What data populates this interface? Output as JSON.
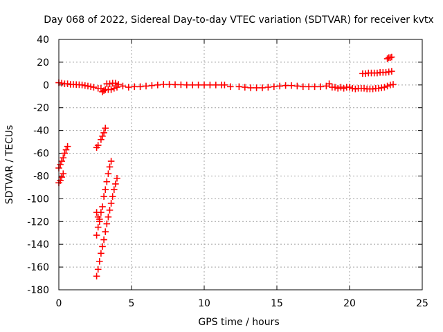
{
  "chart_data": {
    "type": "scatter",
    "title": "Day 068 of 2022, Sidereal Day-to-day VTEC variation (SDTVAR) for receiver kvtx",
    "xlabel": "GPS time / hours",
    "ylabel": "SDTVAR / TECUs",
    "xlim": [
      0,
      25
    ],
    "ylim": [
      -180,
      40
    ],
    "xticks": [
      0,
      5,
      10,
      15,
      20,
      25
    ],
    "yticks": [
      -180,
      -160,
      -140,
      -120,
      -100,
      -80,
      -60,
      -40,
      -20,
      0,
      20,
      40
    ],
    "grid": true,
    "legend": false,
    "marker": "plus",
    "colors": {
      "series": "#ff0000"
    },
    "series": [
      {
        "points": [
          [
            0.0,
            2
          ],
          [
            0.2,
            1.5
          ],
          [
            0.4,
            1
          ],
          [
            0.6,
            1
          ],
          [
            0.8,
            0.5
          ],
          [
            1.0,
            0.5
          ],
          [
            1.2,
            0.3
          ],
          [
            1.4,
            0.2
          ],
          [
            1.6,
            0
          ],
          [
            1.8,
            -0.5
          ],
          [
            2.0,
            -1
          ],
          [
            2.2,
            -1.5
          ],
          [
            2.4,
            -2
          ],
          [
            2.9,
            -3
          ],
          [
            3.0,
            -6
          ],
          [
            3.1,
            -5
          ],
          [
            3.2,
            -4
          ],
          [
            3.4,
            -4
          ],
          [
            3.6,
            -4
          ],
          [
            3.8,
            -3
          ],
          [
            4.0,
            -2
          ],
          [
            3.3,
            1
          ],
          [
            3.5,
            1
          ],
          [
            3.7,
            1.5
          ],
          [
            3.9,
            1.5
          ],
          [
            4.1,
            0.5
          ],
          [
            4.4,
            -1
          ],
          [
            2.7,
            -3
          ],
          [
            4.8,
            -2
          ],
          [
            5.2,
            -1.5
          ],
          [
            5.6,
            -1.5
          ],
          [
            6.0,
            -1
          ],
          [
            6.4,
            -0.5
          ],
          [
            6.8,
            0
          ],
          [
            7.2,
            0.5
          ],
          [
            7.6,
            0.5
          ],
          [
            8.0,
            0.3
          ],
          [
            8.4,
            0.2
          ],
          [
            8.8,
            0
          ],
          [
            9.2,
            0
          ],
          [
            9.6,
            0
          ],
          [
            10.0,
            0
          ],
          [
            10.4,
            0
          ],
          [
            10.8,
            0
          ],
          [
            11.2,
            0
          ],
          [
            11.4,
            0
          ],
          [
            11.8,
            -1.5
          ],
          [
            12.4,
            -1.5
          ],
          [
            12.8,
            -2
          ],
          [
            13.2,
            -2.5
          ],
          [
            13.6,
            -2.5
          ],
          [
            14.0,
            -2.5
          ],
          [
            14.4,
            -2
          ],
          [
            14.8,
            -1.5
          ],
          [
            15.2,
            -1
          ],
          [
            15.6,
            -0.5
          ],
          [
            16.0,
            -0.5
          ],
          [
            16.4,
            -1
          ],
          [
            16.8,
            -1.5
          ],
          [
            17.2,
            -1.5
          ],
          [
            17.6,
            -1.5
          ],
          [
            18.0,
            -1.5
          ],
          [
            18.4,
            -1
          ],
          [
            18.6,
            1
          ],
          [
            18.8,
            -2
          ],
          [
            19.0,
            -2
          ],
          [
            19.2,
            -3
          ],
          [
            19.4,
            -2
          ],
          [
            19.6,
            -3
          ],
          [
            19.8,
            -2
          ],
          [
            20.0,
            -2
          ],
          [
            20.2,
            -3
          ],
          [
            20.4,
            -3.5
          ],
          [
            20.6,
            -3
          ],
          [
            20.8,
            -3
          ],
          [
            21.0,
            -3
          ],
          [
            21.2,
            -3.5
          ],
          [
            21.4,
            -3.5
          ],
          [
            21.6,
            -3.5
          ],
          [
            21.8,
            -3
          ],
          [
            22.0,
            -3
          ],
          [
            22.2,
            -2.5
          ],
          [
            22.4,
            -2
          ],
          [
            22.6,
            -1
          ],
          [
            22.8,
            0
          ],
          [
            23.0,
            0.5
          ],
          [
            20.9,
            10
          ],
          [
            21.1,
            10
          ],
          [
            21.3,
            10.5
          ],
          [
            21.5,
            10.5
          ],
          [
            21.7,
            10.5
          ],
          [
            21.9,
            10.5
          ],
          [
            22.1,
            11
          ],
          [
            22.3,
            11
          ],
          [
            22.5,
            11
          ],
          [
            22.7,
            11.5
          ],
          [
            22.9,
            12
          ],
          [
            22.6,
            23
          ],
          [
            22.7,
            24
          ],
          [
            22.8,
            24
          ],
          [
            22.9,
            24.5
          ],
          [
            0.0,
            -73
          ],
          [
            0.1,
            -70
          ],
          [
            0.2,
            -67
          ],
          [
            0.3,
            -64
          ],
          [
            0.4,
            -60
          ],
          [
            0.5,
            -57
          ],
          [
            0.6,
            -54
          ],
          [
            0.0,
            -86
          ],
          [
            0.1,
            -84
          ],
          [
            0.2,
            -81
          ],
          [
            0.3,
            -78
          ],
          [
            2.6,
            -55
          ],
          [
            2.7,
            -53
          ],
          [
            2.9,
            -48
          ],
          [
            3.0,
            -45
          ],
          [
            3.1,
            -42
          ],
          [
            3.2,
            -38
          ],
          [
            2.6,
            -132
          ],
          [
            2.7,
            -125
          ],
          [
            2.8,
            -118
          ],
          [
            2.9,
            -112
          ],
          [
            3.0,
            -107
          ],
          [
            3.1,
            -98
          ],
          [
            3.2,
            -92
          ],
          [
            3.3,
            -85
          ],
          [
            3.4,
            -78
          ],
          [
            3.5,
            -72
          ],
          [
            3.6,
            -67
          ],
          [
            2.6,
            -112
          ],
          [
            2.7,
            -116
          ],
          [
            2.8,
            -120
          ],
          [
            2.6,
            -168
          ],
          [
            2.7,
            -162
          ],
          [
            2.8,
            -155
          ],
          [
            2.9,
            -148
          ],
          [
            3.0,
            -142
          ],
          [
            3.1,
            -136
          ],
          [
            3.2,
            -129
          ],
          [
            3.3,
            -122
          ],
          [
            3.4,
            -116
          ],
          [
            3.5,
            -110
          ],
          [
            3.6,
            -104
          ],
          [
            3.7,
            -98
          ],
          [
            3.8,
            -92
          ],
          [
            3.9,
            -87
          ],
          [
            4.0,
            -82
          ]
        ]
      }
    ]
  }
}
